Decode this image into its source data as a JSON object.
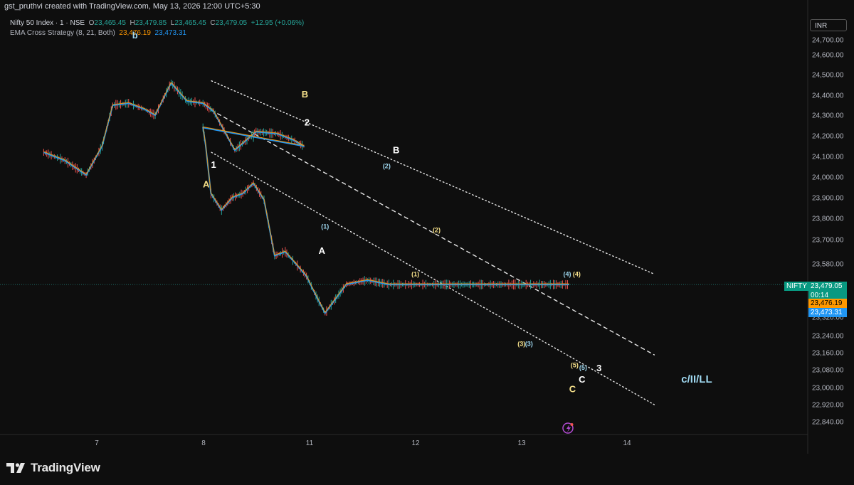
{
  "header": {
    "created_by": "gst_pruthvi created with TradingView.com, May 13, 2026 12:00 UTC+5:30"
  },
  "legend": {
    "symbol": "Nifty 50 Index · 1 · NSE",
    "open_label": "O",
    "open": "23,465.45",
    "high_label": "H",
    "high": "23,479.85",
    "low_label": "L",
    "low": "23,465.45",
    "close_label": "C",
    "close": "23,479.05",
    "change": "+12.95 (+0.06%)",
    "indicator": "EMA Cross Strategy (8, 21, Both)",
    "ema_fast": "23,476.19",
    "ema_slow": "23,473.31"
  },
  "currency_button": "INR",
  "price_tags": {
    "symbol_tag": "NIFTY",
    "last_price": "23,479.05",
    "countdown": "00:14",
    "ema_fast": "23,476.19",
    "ema_slow": "23,473.31"
  },
  "branding": "TradingView",
  "colors": {
    "background": "#0e0e0e",
    "price_line": "#26a69a",
    "ema_fast": "#ff9800",
    "ema_slow": "#2196f3",
    "candle_up": "#26a69a",
    "candle_down": "#ef5350",
    "label_white": "#ffffff",
    "label_yellow": "#f5e08a",
    "label_cyan": "#9fd8f0"
  },
  "chart_data": {
    "type": "line",
    "title": "",
    "xlabel": "",
    "ylabel": "",
    "y_axis_position": "right",
    "ylim": [
      22780,
      24780
    ],
    "grid": false,
    "y_ticks": [
      "24,700.00",
      "24,600.00",
      "24,500.00",
      "24,400.00",
      "24,300.00",
      "24,200.00",
      "24,100.00",
      "24,000.00",
      "23,900.00",
      "23,800.00",
      "23,700.00",
      "23,580.00",
      "23,320.00",
      "23,240.00",
      "23,160.00",
      "23,080.00",
      "23,000.00",
      "22,920.00",
      "22,840.00"
    ],
    "x_ticks": [
      "7",
      "8",
      "11",
      "12",
      "13",
      "14"
    ],
    "series": [
      {
        "x": [
          6.5,
          6.7,
          6.9,
          7.05,
          7.15,
          7.3,
          7.45,
          7.55,
          7.7,
          7.85,
          8.0,
          8.1,
          8.3,
          8.5,
          8.7,
          8.85,
          8.95,
          9.0,
          9.05,
          9.15,
          9.35,
          9.55,
          9.75,
          9.95,
          10.15,
          10.35,
          10.55,
          10.75,
          10.95,
          11.05,
          11.15,
          11.35,
          11.55,
          11.75,
          11.95,
          12.1,
          12.25,
          12.45,
          12.65,
          12.85,
          13.0,
          13.1,
          13.2,
          13.3,
          13.4,
          13.45
        ],
        "values": [
          24120,
          24080,
          24010,
          24150,
          24350,
          24360,
          24330,
          24300,
          24460,
          24370,
          24360,
          24320,
          24130,
          24220,
          24210,
          24180,
          24150,
          24240,
          24155,
          23920,
          23840,
          23900,
          23920,
          23970,
          23890,
          23620,
          23640,
          23580,
          23520,
          23440,
          23340,
          23480,
          23500,
          23479,
          23479,
          23479,
          23479,
          23479,
          23479,
          23479,
          23479,
          23479,
          23479,
          23479,
          23479,
          23479
        ]
      }
    ],
    "channels": [
      {
        "style": "dotted",
        "points": [
          [
            8.08,
            24470
          ],
          [
            14.25,
            23530
          ]
        ]
      },
      {
        "style": "dashed",
        "points": [
          [
            8.08,
            24325
          ],
          [
            14.25,
            23150
          ]
        ]
      },
      {
        "style": "dotted",
        "points": [
          [
            8.08,
            24120
          ],
          [
            14.25,
            22920
          ]
        ]
      }
    ],
    "last_price_line": 23479.05,
    "wave_labels": [
      {
        "text": "b",
        "x": 7.36,
        "y": 24710,
        "color": "label_cyan",
        "size": "large"
      },
      {
        "text": "B",
        "x": 10.92,
        "y": 24390,
        "color": "label_yellow",
        "size": "large"
      },
      {
        "text": "2",
        "x": 10.96,
        "y": 24250,
        "color": "label_white",
        "size": "large"
      },
      {
        "text": "1",
        "x": 8.1,
        "y": 24045,
        "color": "label_white",
        "size": "large"
      },
      {
        "text": "A",
        "x": 8.03,
        "y": 23950,
        "color": "label_yellow",
        "size": "large"
      },
      {
        "text": "B",
        "x": 11.82,
        "y": 24115,
        "color": "label_white",
        "size": "large"
      },
      {
        "text": "(2)",
        "x": 11.73,
        "y": 24043,
        "color": "label_cyan",
        "size": "small"
      },
      {
        "text": "(1)",
        "x": 11.15,
        "y": 23752,
        "color": "label_cyan",
        "size": "small"
      },
      {
        "text": "A",
        "x": 11.12,
        "y": 23630,
        "color": "label_white",
        "size": "large"
      },
      {
        "text": "(2)",
        "x": 12.2,
        "y": 23735,
        "color": "label_yellow",
        "size": "small"
      },
      {
        "text": "(1)",
        "x": 12.0,
        "y": 23520,
        "color": "label_yellow",
        "size": "small"
      },
      {
        "text": "(4)",
        "x": 13.43,
        "y": 23520,
        "color": "label_cyan",
        "size": "small"
      },
      {
        "text": "(4)",
        "x": 13.52,
        "y": 23520,
        "color": "label_yellow",
        "size": "small"
      },
      {
        "text": "(3)",
        "x": 13.0,
        "y": 23192,
        "color": "label_yellow",
        "size": "small"
      },
      {
        "text": "(3)",
        "x": 13.07,
        "y": 23192,
        "color": "label_cyan",
        "size": "small"
      },
      {
        "text": "(5)",
        "x": 13.5,
        "y": 23092,
        "color": "label_yellow",
        "size": "small"
      },
      {
        "text": "(5)",
        "x": 13.58,
        "y": 23080,
        "color": "label_cyan",
        "size": "small"
      },
      {
        "text": "3",
        "x": 13.73,
        "y": 23073,
        "color": "label_white",
        "size": "large"
      },
      {
        "text": "C",
        "x": 13.57,
        "y": 23022,
        "color": "label_white",
        "size": "large"
      },
      {
        "text": "C",
        "x": 13.48,
        "y": 22978,
        "color": "label_yellow",
        "size": "large"
      },
      {
        "text": "c/II/LL",
        "x": 14.65,
        "y": 23022,
        "color": "label_cyan",
        "size": "xlarge"
      }
    ]
  }
}
